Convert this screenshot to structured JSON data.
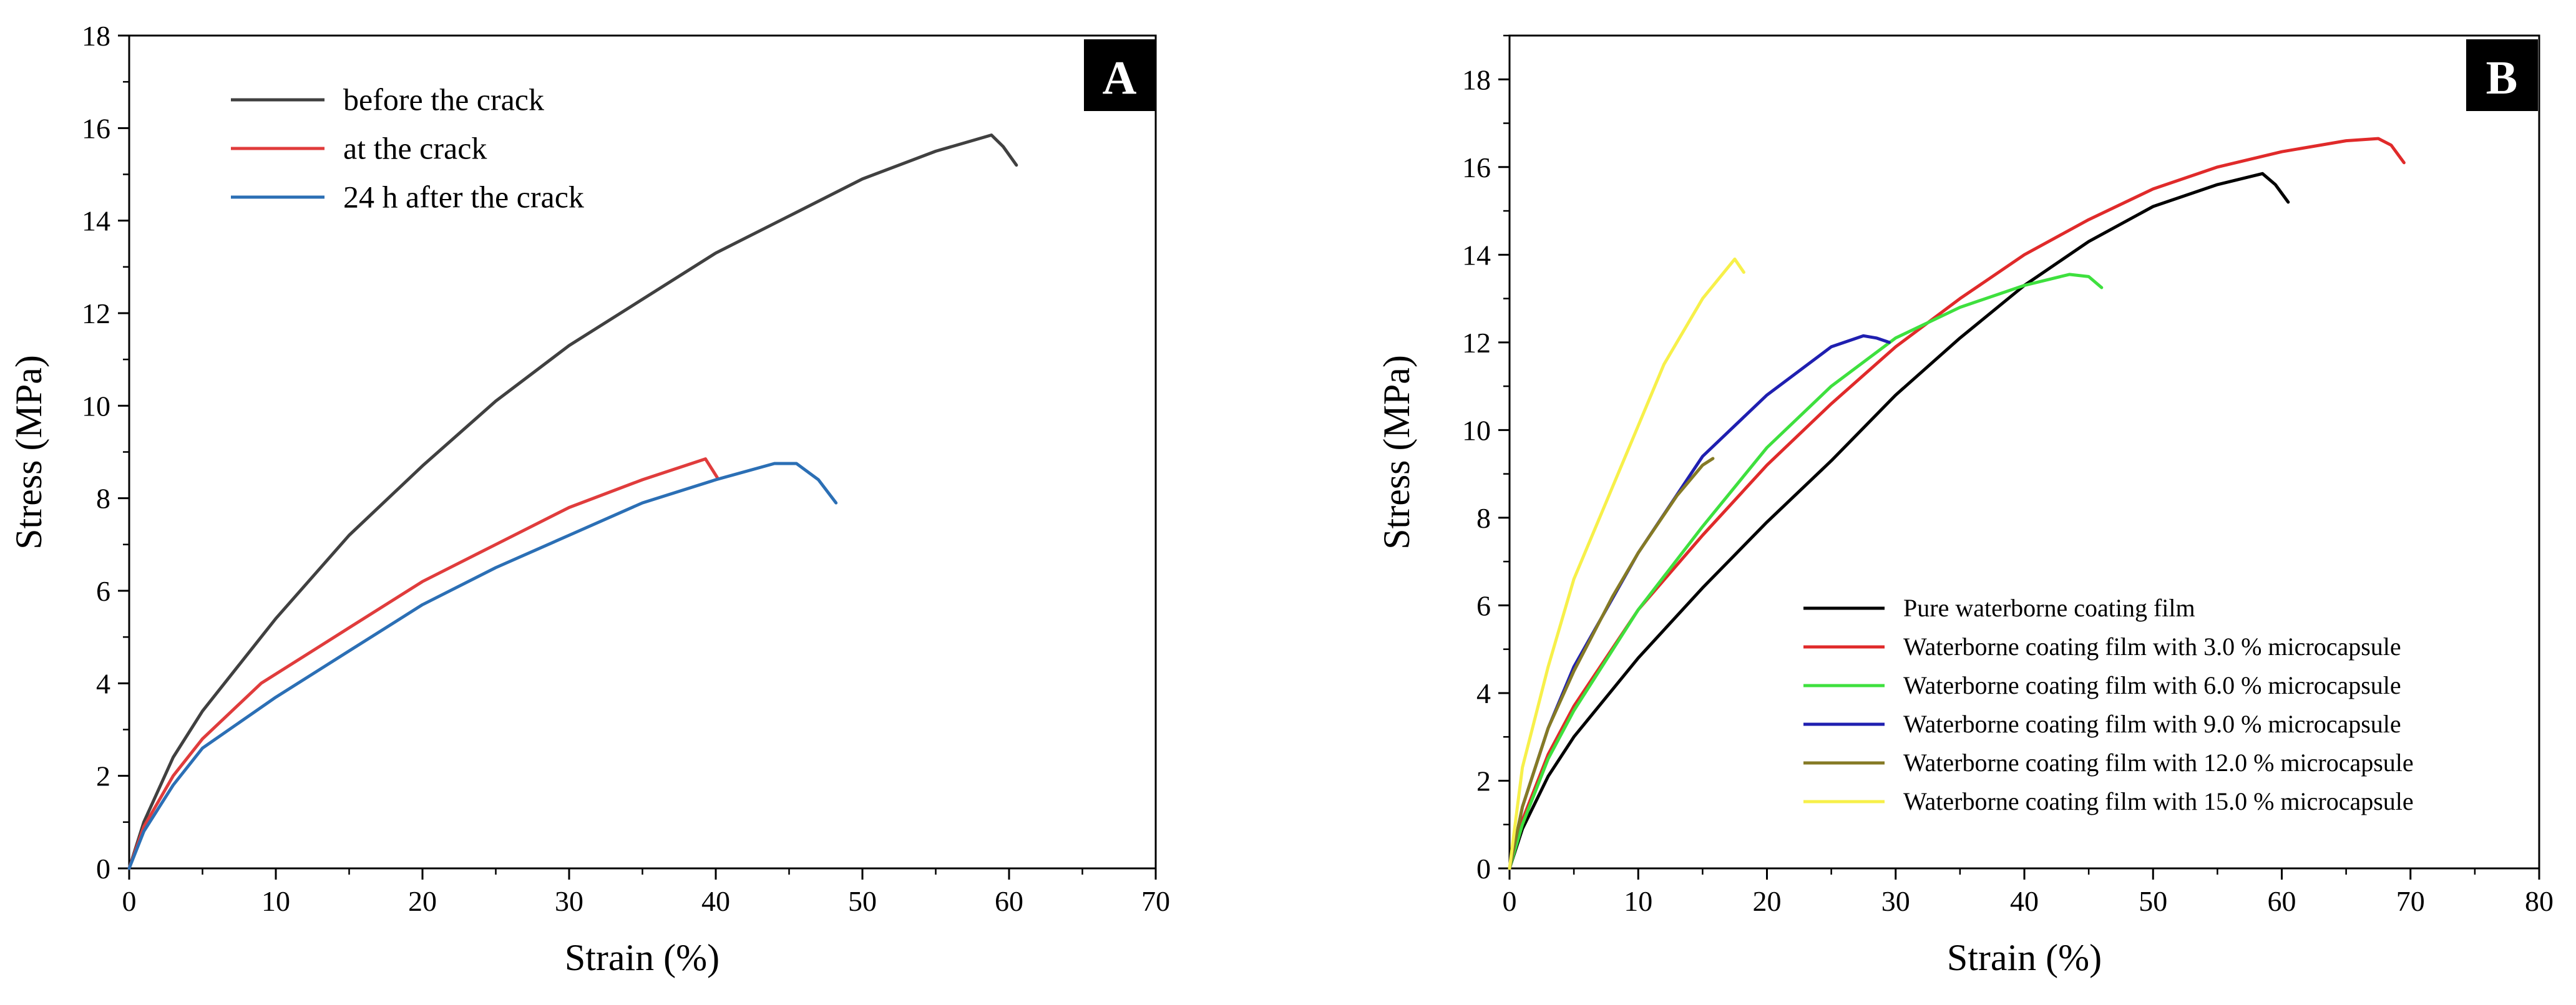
{
  "chart_data": [
    {
      "type": "line",
      "panel_label": "A",
      "xlabel": "Strain  (%)",
      "ylabel": "Stress (MPa)",
      "xlim": [
        0,
        70
      ],
      "ylim": [
        0,
        18
      ],
      "xticks": [
        0,
        10,
        20,
        30,
        40,
        50,
        60,
        70
      ],
      "yticks": [
        0,
        2,
        4,
        6,
        8,
        10,
        12,
        14,
        16,
        18
      ],
      "legend_position": "top-left",
      "series": [
        {
          "name": "before the crack",
          "color": "#404040",
          "x": [
            0,
            1,
            3,
            5,
            8,
            10,
            15,
            20,
            25,
            30,
            35,
            40,
            45,
            50,
            55,
            58.8,
            59.6,
            60.5
          ],
          "y": [
            0,
            1.0,
            2.4,
            3.4,
            4.6,
            5.4,
            7.2,
            8.7,
            10.1,
            11.3,
            12.3,
            13.3,
            14.1,
            14.9,
            15.5,
            15.85,
            15.6,
            15.2
          ]
        },
        {
          "name": "at the crack",
          "color": "#e03c3c",
          "x": [
            0,
            1,
            3,
            5,
            9,
            15,
            20,
            25,
            30,
            35,
            39.3,
            39.6,
            40.1
          ],
          "y": [
            0,
            0.9,
            2.0,
            2.8,
            4.0,
            5.2,
            6.2,
            7.0,
            7.8,
            8.4,
            8.85,
            8.7,
            8.45
          ]
        },
        {
          "name": "24 h after the crack",
          "color": "#2b6fb5",
          "x": [
            0,
            1,
            3,
            5,
            10,
            15,
            20,
            25,
            30,
            35,
            40,
            44,
            45.5,
            47,
            48.2
          ],
          "y": [
            0,
            0.8,
            1.8,
            2.6,
            3.7,
            4.7,
            5.7,
            6.5,
            7.2,
            7.9,
            8.4,
            8.75,
            8.75,
            8.4,
            7.9
          ]
        }
      ]
    },
    {
      "type": "line",
      "panel_label": "B",
      "xlabel": "Strain  (%)",
      "ylabel": "Stress (MPa)",
      "xlim": [
        0,
        80
      ],
      "ylim": [
        0,
        19
      ],
      "xticks": [
        0,
        10,
        20,
        30,
        40,
        50,
        60,
        70,
        80
      ],
      "yticks": [
        0,
        2,
        4,
        6,
        8,
        10,
        12,
        14,
        16,
        18
      ],
      "legend_position": "bottom-right",
      "series": [
        {
          "name": "Pure waterborne coating film",
          "color": "#000000",
          "x": [
            0,
            1,
            3,
            5,
            10,
            15,
            20,
            25,
            30,
            35,
            40,
            45,
            50,
            55,
            58.5,
            59.5,
            60.5
          ],
          "y": [
            0,
            0.9,
            2.1,
            3.0,
            4.8,
            6.4,
            7.9,
            9.3,
            10.8,
            12.1,
            13.3,
            14.3,
            15.1,
            15.6,
            15.85,
            15.6,
            15.2
          ]
        },
        {
          "name": "Waterborne coating film with 3.0 % microcapsule",
          "color": "#e02a2a",
          "x": [
            0,
            1,
            3,
            5,
            10,
            15,
            20,
            25,
            30,
            35,
            40,
            45,
            50,
            55,
            60,
            65,
            67.5,
            68.5,
            69.5
          ],
          "y": [
            0,
            1.1,
            2.6,
            3.7,
            5.9,
            7.6,
            9.2,
            10.6,
            11.9,
            13.0,
            14.0,
            14.8,
            15.5,
            16.0,
            16.35,
            16.6,
            16.65,
            16.5,
            16.1
          ]
        },
        {
          "name": "Waterborne coating film with 6.0 % microcapsule",
          "color": "#3ee03e",
          "x": [
            0,
            1,
            3,
            5,
            10,
            15,
            20,
            25,
            30,
            35,
            40,
            43.5,
            45,
            46
          ],
          "y": [
            0,
            1.0,
            2.5,
            3.6,
            5.9,
            7.8,
            9.6,
            11.0,
            12.1,
            12.8,
            13.3,
            13.55,
            13.5,
            13.25
          ]
        },
        {
          "name": "Waterborne coating film with 9.0 % microcapsule",
          "color": "#1f1fb0",
          "x": [
            0,
            1,
            3,
            5,
            10,
            15,
            20,
            25,
            27.5,
            28.5,
            29.5
          ],
          "y": [
            0,
            1.4,
            3.2,
            4.6,
            7.2,
            9.4,
            10.8,
            11.9,
            12.15,
            12.1,
            12.0
          ]
        },
        {
          "name": "Waterborne coating film with 12.0 % microcapsule",
          "color": "#857a25",
          "x": [
            0,
            1,
            3,
            5,
            8,
            10,
            13,
            15,
            15.8
          ],
          "y": [
            0,
            1.4,
            3.2,
            4.5,
            6.2,
            7.2,
            8.5,
            9.2,
            9.35
          ]
        },
        {
          "name": "Waterborne coating film with 15.0 % microcapsule",
          "color": "#f7f04a",
          "x": [
            0,
            1,
            3,
            5,
            8,
            10,
            12,
            15,
            17.5,
            18.2
          ],
          "y": [
            0,
            2.3,
            4.6,
            6.6,
            8.7,
            10.1,
            11.5,
            13.0,
            13.9,
            13.6
          ]
        }
      ]
    }
  ]
}
